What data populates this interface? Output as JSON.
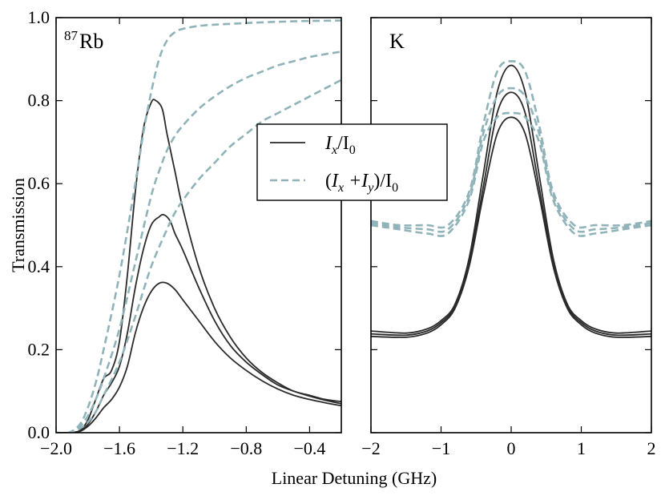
{
  "chart_data": [
    {
      "type": "line",
      "panel": "left",
      "label": "Rb",
      "label_superscript": "87",
      "xlim": [
        -2.0,
        -0.2
      ],
      "ylim": [
        0.0,
        1.0
      ],
      "xticks": [
        "−2.0",
        "−1.6",
        "−1.2",
        "−0.8",
        "−0.4"
      ],
      "xtick_values": [
        -2.0,
        -1.6,
        -1.2,
        -0.8,
        -0.4
      ],
      "yticks": [
        "0.0",
        "0.2",
        "0.4",
        "0.6",
        "0.8",
        "1.0"
      ],
      "ytick_values": [
        0.0,
        0.2,
        0.4,
        0.6,
        0.8,
        1.0
      ],
      "ylabel": "Transmission",
      "series": [
        {
          "name": "Ix/I0 (1)",
          "style": "solid",
          "x": [
            -2.0,
            -1.92,
            -1.85,
            -1.8,
            -1.75,
            -1.7,
            -1.65,
            -1.6,
            -1.55,
            -1.5,
            -1.45,
            -1.4,
            -1.37,
            -1.33,
            -1.3,
            -1.25,
            -1.2,
            -1.1,
            -1.0,
            -0.9,
            -0.8,
            -0.7,
            -0.6,
            -0.5,
            -0.4,
            -0.3,
            -0.2
          ],
          "y": [
            0.0,
            0.0,
            0.005,
            0.03,
            0.08,
            0.13,
            0.15,
            0.22,
            0.38,
            0.58,
            0.73,
            0.795,
            0.8,
            0.78,
            0.72,
            0.63,
            0.54,
            0.4,
            0.3,
            0.23,
            0.18,
            0.145,
            0.12,
            0.1,
            0.09,
            0.08,
            0.075
          ]
        },
        {
          "name": "Ix/I0 (2)",
          "style": "solid",
          "x": [
            -2.0,
            -1.92,
            -1.85,
            -1.8,
            -1.75,
            -1.7,
            -1.65,
            -1.6,
            -1.55,
            -1.5,
            -1.45,
            -1.4,
            -1.35,
            -1.32,
            -1.28,
            -1.25,
            -1.2,
            -1.1,
            -1.0,
            -0.9,
            -0.8,
            -0.7,
            -0.6,
            -0.5,
            -0.4,
            -0.3,
            -0.2
          ],
          "y": [
            0.0,
            0.0,
            0.004,
            0.02,
            0.05,
            0.09,
            0.12,
            0.16,
            0.24,
            0.35,
            0.44,
            0.5,
            0.52,
            0.525,
            0.51,
            0.48,
            0.44,
            0.35,
            0.27,
            0.21,
            0.17,
            0.14,
            0.115,
            0.1,
            0.088,
            0.078,
            0.07
          ]
        },
        {
          "name": "Ix/I0 (3)",
          "style": "solid",
          "x": [
            -2.0,
            -1.92,
            -1.85,
            -1.8,
            -1.75,
            -1.7,
            -1.65,
            -1.6,
            -1.55,
            -1.5,
            -1.45,
            -1.4,
            -1.35,
            -1.3,
            -1.25,
            -1.2,
            -1.1,
            -1.0,
            -0.9,
            -0.8,
            -0.7,
            -0.6,
            -0.5,
            -0.4,
            -0.3,
            -0.2
          ],
          "y": [
            0.0,
            0.0,
            0.003,
            0.015,
            0.035,
            0.06,
            0.08,
            0.11,
            0.16,
            0.24,
            0.3,
            0.34,
            0.36,
            0.36,
            0.345,
            0.32,
            0.27,
            0.22,
            0.18,
            0.15,
            0.125,
            0.105,
            0.09,
            0.08,
            0.072,
            0.065
          ]
        },
        {
          "name": "(Ix+Iy)/I0 (1)",
          "style": "dashed",
          "x": [
            -2.0,
            -1.92,
            -1.85,
            -1.8,
            -1.75,
            -1.7,
            -1.6,
            -1.5,
            -1.45,
            -1.4,
            -1.35,
            -1.3,
            -1.25,
            -1.2,
            -1.1,
            -1.0,
            -0.9,
            -0.8,
            -0.6,
            -0.4,
            -0.2
          ],
          "y": [
            0.0,
            0.0,
            0.02,
            0.06,
            0.12,
            0.2,
            0.38,
            0.6,
            0.72,
            0.82,
            0.9,
            0.945,
            0.965,
            0.973,
            0.98,
            0.983,
            0.985,
            0.987,
            0.99,
            0.992,
            0.993
          ]
        },
        {
          "name": "(Ix+Iy)/I0 (2)",
          "style": "dashed",
          "x": [
            -2.0,
            -1.92,
            -1.85,
            -1.8,
            -1.75,
            -1.7,
            -1.6,
            -1.5,
            -1.4,
            -1.35,
            -1.3,
            -1.25,
            -1.2,
            -1.1,
            -1.0,
            -0.9,
            -0.8,
            -0.7,
            -0.6,
            -0.5,
            -0.4,
            -0.3,
            -0.2
          ],
          "y": [
            0.0,
            0.0,
            0.015,
            0.04,
            0.08,
            0.13,
            0.25,
            0.41,
            0.57,
            0.63,
            0.68,
            0.715,
            0.74,
            0.78,
            0.81,
            0.835,
            0.855,
            0.87,
            0.885,
            0.895,
            0.905,
            0.912,
            0.918
          ]
        },
        {
          "name": "(Ix+Iy)/I0 (3)",
          "style": "dashed",
          "x": [
            -2.0,
            -1.92,
            -1.85,
            -1.8,
            -1.75,
            -1.7,
            -1.6,
            -1.5,
            -1.4,
            -1.3,
            -1.25,
            -1.2,
            -1.1,
            -1.0,
            -0.9,
            -0.8,
            -0.7,
            -0.6,
            -0.5,
            -0.4,
            -0.3,
            -0.2
          ],
          "y": [
            0.0,
            0.0,
            0.01,
            0.025,
            0.05,
            0.09,
            0.17,
            0.28,
            0.4,
            0.49,
            0.53,
            0.56,
            0.61,
            0.65,
            0.69,
            0.72,
            0.75,
            0.77,
            0.79,
            0.81,
            0.83,
            0.85
          ]
        }
      ]
    },
    {
      "type": "line",
      "panel": "right",
      "label": "K",
      "xlim": [
        -2,
        2
      ],
      "ylim": [
        0.0,
        1.0
      ],
      "xticks": [
        "−2",
        "−1",
        "0",
        "1",
        "2"
      ],
      "xtick_values": [
        -2,
        -1,
        0,
        1,
        2
      ],
      "series": [
        {
          "name": "Ix/I0 (1)",
          "style": "solid",
          "x": [
            -2,
            -1.5,
            -1.2,
            -1.0,
            -0.8,
            -0.6,
            -0.4,
            -0.2,
            0,
            0.2,
            0.4,
            0.6,
            0.8,
            1.0,
            1.2,
            1.5,
            2
          ],
          "y": [
            0.245,
            0.24,
            0.25,
            0.27,
            0.31,
            0.42,
            0.62,
            0.82,
            0.885,
            0.82,
            0.62,
            0.42,
            0.31,
            0.27,
            0.25,
            0.24,
            0.245
          ]
        },
        {
          "name": "Ix/I0 (2)",
          "style": "solid",
          "x": [
            -2,
            -1.5,
            -1.2,
            -1.0,
            -0.8,
            -0.6,
            -0.4,
            -0.2,
            0,
            0.2,
            0.4,
            0.6,
            0.8,
            1.0,
            1.2,
            1.5,
            2
          ],
          "y": [
            0.238,
            0.235,
            0.245,
            0.265,
            0.305,
            0.41,
            0.59,
            0.77,
            0.82,
            0.77,
            0.59,
            0.41,
            0.305,
            0.265,
            0.245,
            0.235,
            0.238
          ]
        },
        {
          "name": "Ix/I0 (3)",
          "style": "solid",
          "x": [
            -2,
            -1.5,
            -1.2,
            -1.0,
            -0.8,
            -0.6,
            -0.4,
            -0.2,
            0,
            0.2,
            0.4,
            0.6,
            0.8,
            1.0,
            1.2,
            1.5,
            2
          ],
          "y": [
            0.232,
            0.23,
            0.24,
            0.26,
            0.3,
            0.4,
            0.57,
            0.72,
            0.76,
            0.72,
            0.57,
            0.4,
            0.3,
            0.26,
            0.24,
            0.23,
            0.232
          ]
        },
        {
          "name": "(Ix+Iy)/I0 (1)",
          "style": "dashed",
          "x": [
            -2,
            -1.6,
            -1.2,
            -0.9,
            -0.6,
            -0.4,
            -0.2,
            0,
            0.2,
            0.4,
            0.6,
            0.9,
            1.2,
            1.6,
            2
          ],
          "y": [
            0.51,
            0.5,
            0.5,
            0.5,
            0.58,
            0.74,
            0.87,
            0.895,
            0.87,
            0.74,
            0.58,
            0.5,
            0.5,
            0.5,
            0.51
          ]
        },
        {
          "name": "(Ix+Iy)/I0 (2)",
          "style": "dashed",
          "x": [
            -2,
            -1.6,
            -1.2,
            -0.9,
            -0.6,
            -0.4,
            -0.2,
            0,
            0.2,
            0.4,
            0.6,
            0.9,
            1.2,
            1.6,
            2
          ],
          "y": [
            0.505,
            0.495,
            0.49,
            0.49,
            0.57,
            0.72,
            0.81,
            0.83,
            0.81,
            0.72,
            0.57,
            0.49,
            0.49,
            0.495,
            0.505
          ]
        },
        {
          "name": "(Ix+Iy)/I0 (3)",
          "style": "dashed",
          "x": [
            -2,
            -1.6,
            -1.2,
            -0.9,
            -0.6,
            -0.4,
            -0.2,
            0,
            0.2,
            0.4,
            0.6,
            0.9,
            1.2,
            1.6,
            2
          ],
          "y": [
            0.5,
            0.49,
            0.48,
            0.48,
            0.56,
            0.7,
            0.76,
            0.77,
            0.76,
            0.7,
            0.56,
            0.48,
            0.48,
            0.49,
            0.5
          ]
        }
      ]
    }
  ],
  "xlabel": "Linear Detuning (GHz)",
  "legend": {
    "entries": [
      {
        "style": "solid",
        "label_main": "I",
        "label_sub": "x",
        "label_rest": "/I",
        "label_sub2": "0"
      },
      {
        "style": "dashed",
        "label_prefix": "(",
        "label_main": "I",
        "label_sub": "x",
        "label_mid": " +I",
        "label_sub_b": "y",
        "label_rest": ")/I",
        "label_sub2": "0"
      }
    ],
    "placement": "center"
  },
  "colors": {
    "solid": "#2a2a2a",
    "dashed": "#8fb3b8"
  }
}
